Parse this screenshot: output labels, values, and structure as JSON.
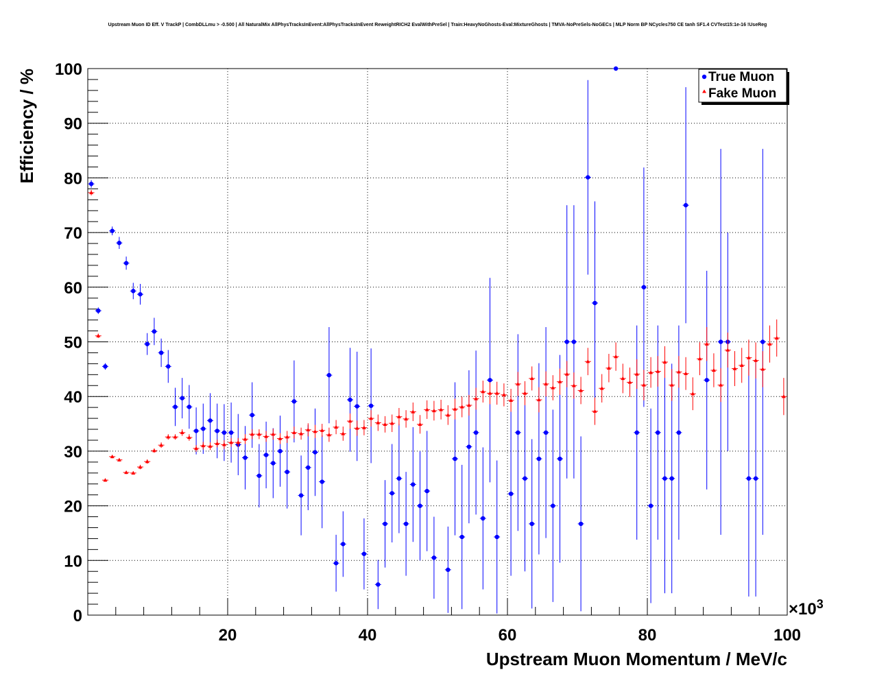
{
  "chart_data": {
    "type": "scatter",
    "title": "Upstream Muon ID Eff. V TrackP | CombDLLmu > -0.500 | All NaturalMix AllPhysTracksInEvent:AllPhysTracksInEvent ReweightRICH2 EvalWithPreSel | Train:HeavyNoGhosts-Eval:MixtureGhosts | TMVA-NoPreSels-NoGECs | MLP Norm BP NCycles750 CE tanh SF1.4 CVTest15:1e-16 !UseReg",
    "xlabel": "Upstream Muon Momentum / MeV/c",
    "ylabel": "Efficiency / %",
    "x_multiplier": "×10",
    "x_multiplier_exp": "3",
    "xlim": [
      0,
      100
    ],
    "ylim": [
      0,
      100
    ],
    "x_ticks": [
      20,
      40,
      60,
      80,
      100
    ],
    "y_ticks": [
      0,
      10,
      20,
      30,
      40,
      50,
      60,
      70,
      80,
      90,
      100
    ],
    "grid": true,
    "legend_position": "top-right",
    "series": [
      {
        "name": "True Muon",
        "color": "#0000ff",
        "marker": "circle",
        "points": [
          {
            "x": 0.5,
            "y": 78.9,
            "err": 0.7
          },
          {
            "x": 1.5,
            "y": 55.7,
            "err": 0.6
          },
          {
            "x": 2.5,
            "y": 45.5,
            "err": 0.6
          },
          {
            "x": 3.5,
            "y": 70.3,
            "err": 0.8
          },
          {
            "x": 4.5,
            "y": 68.1,
            "err": 1.1
          },
          {
            "x": 5.5,
            "y": 64.4,
            "err": 1.2
          },
          {
            "x": 6.5,
            "y": 59.3,
            "err": 1.5
          },
          {
            "x": 7.5,
            "y": 58.7,
            "err": 1.9
          },
          {
            "x": 8.5,
            "y": 49.6,
            "err": 2.0
          },
          {
            "x": 9.5,
            "y": 51.9,
            "err": 2.5
          },
          {
            "x": 10.5,
            "y": 48.0,
            "err": 2.6
          },
          {
            "x": 11.5,
            "y": 45.5,
            "err": 3.0
          },
          {
            "x": 12.5,
            "y": 38.1,
            "err": 3.5
          },
          {
            "x": 13.5,
            "y": 39.7,
            "err": 3.7
          },
          {
            "x": 14.5,
            "y": 38.1,
            "err": 4.0
          },
          {
            "x": 15.5,
            "y": 33.7,
            "err": 4.3
          },
          {
            "x": 16.5,
            "y": 34.1,
            "err": 4.6
          },
          {
            "x": 17.5,
            "y": 35.6,
            "err": 5.0
          },
          {
            "x": 18.5,
            "y": 33.7,
            "err": 5.0
          },
          {
            "x": 19.5,
            "y": 33.4,
            "err": 5.2
          },
          {
            "x": 20.5,
            "y": 33.4,
            "err": 5.5
          },
          {
            "x": 21.5,
            "y": 31.2,
            "err": 5.6
          },
          {
            "x": 22.5,
            "y": 28.8,
            "err": 5.8
          },
          {
            "x": 23.5,
            "y": 36.6,
            "err": 6.0
          },
          {
            "x": 24.5,
            "y": 25.5,
            "err": 5.8
          },
          {
            "x": 25.5,
            "y": 29.3,
            "err": 6.1
          },
          {
            "x": 26.5,
            "y": 27.8,
            "err": 6.4
          },
          {
            "x": 27.5,
            "y": 30.0,
            "err": 6.5
          },
          {
            "x": 28.5,
            "y": 26.2,
            "err": 6.7
          },
          {
            "x": 29.5,
            "y": 39.1,
            "err": 7.5
          },
          {
            "x": 30.5,
            "y": 21.9,
            "err": 7.3
          },
          {
            "x": 31.5,
            "y": 27.0,
            "err": 7.8
          },
          {
            "x": 32.5,
            "y": 29.8,
            "err": 8.0
          },
          {
            "x": 33.5,
            "y": 24.4,
            "err": 8.5
          },
          {
            "x": 34.5,
            "y": 43.9,
            "err": 8.8
          },
          {
            "x": 35.5,
            "y": 9.5,
            "err": 5.2
          },
          {
            "x": 36.5,
            "y": 13.0,
            "err": 6.0
          },
          {
            "x": 37.5,
            "y": 39.4,
            "err": 9.5
          },
          {
            "x": 38.5,
            "y": 38.2,
            "err": 10.0
          },
          {
            "x": 39.5,
            "y": 11.2,
            "err": 6.5
          },
          {
            "x": 40.5,
            "y": 38.3,
            "err": 10.5
          },
          {
            "x": 41.5,
            "y": 5.6,
            "err": 4.5
          },
          {
            "x": 42.5,
            "y": 16.7,
            "err": 8.0
          },
          {
            "x": 43.5,
            "y": 22.3,
            "err": 9.0
          },
          {
            "x": 44.5,
            "y": 25.0,
            "err": 10.0
          },
          {
            "x": 45.5,
            "y": 16.7,
            "err": 9.5
          },
          {
            "x": 46.5,
            "y": 23.9,
            "err": 10.5
          },
          {
            "x": 47.5,
            "y": 20.0,
            "err": 10.0
          },
          {
            "x": 48.5,
            "y": 22.7,
            "err": 11.0
          },
          {
            "x": 49.5,
            "y": 10.5,
            "err": 7.5
          },
          {
            "x": 51.5,
            "y": 8.3,
            "err": 7.9
          },
          {
            "x": 52.5,
            "y": 28.6,
            "err": 14.0
          },
          {
            "x": 53.5,
            "y": 14.3,
            "err": 13.2
          },
          {
            "x": 54.5,
            "y": 30.8,
            "err": 14.0
          },
          {
            "x": 55.5,
            "y": 33.4,
            "err": 15.0
          },
          {
            "x": 56.5,
            "y": 17.7,
            "err": 13.0
          },
          {
            "x": 57.5,
            "y": 43.0,
            "err": 18.7
          },
          {
            "x": 58.5,
            "y": 14.3,
            "err": 14.0
          },
          {
            "x": 60.5,
            "y": 22.2,
            "err": 15.0
          },
          {
            "x": 61.5,
            "y": 33.4,
            "err": 18.0
          },
          {
            "x": 62.5,
            "y": 25.0,
            "err": 17.0
          },
          {
            "x": 63.5,
            "y": 16.7,
            "err": 15.5
          },
          {
            "x": 64.5,
            "y": 28.6,
            "err": 17.5
          },
          {
            "x": 65.5,
            "y": 33.4,
            "err": 19.3
          },
          {
            "x": 66.5,
            "y": 20.0,
            "err": 17.6
          },
          {
            "x": 67.5,
            "y": 28.6,
            "err": 19.0
          },
          {
            "x": 68.5,
            "y": 50.0,
            "err": 25.0
          },
          {
            "x": 69.5,
            "y": 50.0,
            "err": 25.0
          },
          {
            "x": 70.5,
            "y": 16.7,
            "err": 16.0
          },
          {
            "x": 71.5,
            "y": 80.1,
            "err": 17.8
          },
          {
            "x": 72.5,
            "y": 57.1,
            "err": 18.6
          },
          {
            "x": 75.5,
            "y": 100.0,
            "err": 0
          },
          {
            "x": 78.5,
            "y": 33.4,
            "err": 19.6
          },
          {
            "x": 79.5,
            "y": 60.0,
            "err": 21.9
          },
          {
            "x": 80.5,
            "y": 20.0,
            "err": 17.8
          },
          {
            "x": 81.5,
            "y": 33.4,
            "err": 19.6
          },
          {
            "x": 82.5,
            "y": 25.0,
            "err": 21.0
          },
          {
            "x": 83.5,
            "y": 25.0,
            "err": 21.0
          },
          {
            "x": 84.5,
            "y": 33.4,
            "err": 19.6
          },
          {
            "x": 85.5,
            "y": 75.0,
            "err": 21.6
          },
          {
            "x": 88.5,
            "y": 43.0,
            "err": 20.0
          },
          {
            "x": 90.5,
            "y": 50.0,
            "err": 35.3
          },
          {
            "x": 91.5,
            "y": 50.0,
            "err": 20.0
          },
          {
            "x": 94.5,
            "y": 25.0,
            "err": 21.6
          },
          {
            "x": 95.5,
            "y": 25.0,
            "err": 21.6
          },
          {
            "x": 96.5,
            "y": 50.0,
            "err": 35.3
          }
        ]
      },
      {
        "name": "Fake Muon",
        "color": "#ff0000",
        "marker": "triangle",
        "points": [
          {
            "x": 0.5,
            "y": 77.3,
            "err": 0.5
          },
          {
            "x": 1.5,
            "y": 51.1,
            "err": 0.4
          },
          {
            "x": 2.5,
            "y": 24.7,
            "err": 0.3
          },
          {
            "x": 3.5,
            "y": 29.0,
            "err": 0.3
          },
          {
            "x": 4.5,
            "y": 28.4,
            "err": 0.3
          },
          {
            "x": 5.5,
            "y": 26.1,
            "err": 0.3
          },
          {
            "x": 6.5,
            "y": 26.0,
            "err": 0.3
          },
          {
            "x": 7.5,
            "y": 27.1,
            "err": 0.4
          },
          {
            "x": 8.5,
            "y": 28.1,
            "err": 0.4
          },
          {
            "x": 9.5,
            "y": 30.1,
            "err": 0.4
          },
          {
            "x": 10.5,
            "y": 31.1,
            "err": 0.5
          },
          {
            "x": 11.5,
            "y": 32.6,
            "err": 0.5
          },
          {
            "x": 12.5,
            "y": 32.6,
            "err": 0.5
          },
          {
            "x": 13.5,
            "y": 33.4,
            "err": 0.6
          },
          {
            "x": 14.5,
            "y": 32.5,
            "err": 0.6
          },
          {
            "x": 15.5,
            "y": 30.5,
            "err": 0.6
          },
          {
            "x": 16.5,
            "y": 31.0,
            "err": 0.7
          },
          {
            "x": 17.5,
            "y": 30.9,
            "err": 0.7
          },
          {
            "x": 18.5,
            "y": 31.4,
            "err": 0.7
          },
          {
            "x": 19.5,
            "y": 31.2,
            "err": 0.8
          },
          {
            "x": 20.5,
            "y": 31.6,
            "err": 0.8
          },
          {
            "x": 21.5,
            "y": 31.6,
            "err": 0.8
          },
          {
            "x": 22.5,
            "y": 32.2,
            "err": 0.9
          },
          {
            "x": 23.5,
            "y": 33.1,
            "err": 0.9
          },
          {
            "x": 24.5,
            "y": 33.1,
            "err": 0.9
          },
          {
            "x": 25.5,
            "y": 32.7,
            "err": 1.0
          },
          {
            "x": 26.5,
            "y": 33.1,
            "err": 1.0
          },
          {
            "x": 27.5,
            "y": 32.3,
            "err": 1.0
          },
          {
            "x": 28.5,
            "y": 32.6,
            "err": 1.1
          },
          {
            "x": 29.5,
            "y": 33.4,
            "err": 1.1
          },
          {
            "x": 30.5,
            "y": 33.2,
            "err": 1.1
          },
          {
            "x": 31.5,
            "y": 33.9,
            "err": 1.2
          },
          {
            "x": 32.5,
            "y": 33.6,
            "err": 1.2
          },
          {
            "x": 33.5,
            "y": 33.8,
            "err": 1.2
          },
          {
            "x": 34.5,
            "y": 33.0,
            "err": 1.3
          },
          {
            "x": 35.5,
            "y": 34.4,
            "err": 1.3
          },
          {
            "x": 36.5,
            "y": 33.2,
            "err": 1.3
          },
          {
            "x": 37.5,
            "y": 35.5,
            "err": 1.4
          },
          {
            "x": 38.5,
            "y": 34.2,
            "err": 1.4
          },
          {
            "x": 39.5,
            "y": 34.3,
            "err": 1.4
          },
          {
            "x": 40.5,
            "y": 36.0,
            "err": 1.5
          },
          {
            "x": 41.5,
            "y": 35.2,
            "err": 1.5
          },
          {
            "x": 42.5,
            "y": 34.9,
            "err": 1.5
          },
          {
            "x": 43.5,
            "y": 35.1,
            "err": 1.6
          },
          {
            "x": 44.5,
            "y": 36.3,
            "err": 1.6
          },
          {
            "x": 45.5,
            "y": 35.9,
            "err": 1.6
          },
          {
            "x": 46.5,
            "y": 37.2,
            "err": 1.7
          },
          {
            "x": 47.5,
            "y": 34.9,
            "err": 1.7
          },
          {
            "x": 48.5,
            "y": 37.6,
            "err": 1.7
          },
          {
            "x": 49.5,
            "y": 37.4,
            "err": 1.8
          },
          {
            "x": 50.5,
            "y": 37.6,
            "err": 1.8
          },
          {
            "x": 51.5,
            "y": 36.6,
            "err": 1.8
          },
          {
            "x": 52.5,
            "y": 37.7,
            "err": 1.9
          },
          {
            "x": 53.5,
            "y": 38.1,
            "err": 1.9
          },
          {
            "x": 54.5,
            "y": 38.4,
            "err": 1.9
          },
          {
            "x": 55.5,
            "y": 39.6,
            "err": 2.0
          },
          {
            "x": 56.5,
            "y": 40.9,
            "err": 2.0
          },
          {
            "x": 57.5,
            "y": 40.6,
            "err": 2.0
          },
          {
            "x": 58.5,
            "y": 40.6,
            "err": 2.1
          },
          {
            "x": 59.5,
            "y": 40.3,
            "err": 2.1
          },
          {
            "x": 60.5,
            "y": 39.3,
            "err": 2.1
          },
          {
            "x": 61.5,
            "y": 42.3,
            "err": 2.2
          },
          {
            "x": 62.5,
            "y": 40.6,
            "err": 2.2
          },
          {
            "x": 63.5,
            "y": 43.3,
            "err": 2.2
          },
          {
            "x": 64.5,
            "y": 39.4,
            "err": 2.3
          },
          {
            "x": 65.5,
            "y": 42.3,
            "err": 2.3
          },
          {
            "x": 66.5,
            "y": 41.6,
            "err": 2.3
          },
          {
            "x": 67.5,
            "y": 42.7,
            "err": 2.4
          },
          {
            "x": 68.5,
            "y": 44.1,
            "err": 2.4
          },
          {
            "x": 69.5,
            "y": 42.0,
            "err": 2.4
          },
          {
            "x": 70.5,
            "y": 41.1,
            "err": 2.5
          },
          {
            "x": 71.5,
            "y": 46.4,
            "err": 2.5
          },
          {
            "x": 72.5,
            "y": 37.3,
            "err": 2.5
          },
          {
            "x": 73.5,
            "y": 41.5,
            "err": 2.6
          },
          {
            "x": 74.5,
            "y": 45.2,
            "err": 2.6
          },
          {
            "x": 75.5,
            "y": 47.3,
            "err": 2.6
          },
          {
            "x": 76.5,
            "y": 43.3,
            "err": 2.7
          },
          {
            "x": 77.5,
            "y": 42.6,
            "err": 2.7
          },
          {
            "x": 78.5,
            "y": 44.1,
            "err": 2.7
          },
          {
            "x": 79.5,
            "y": 42.1,
            "err": 2.8
          },
          {
            "x": 80.5,
            "y": 44.4,
            "err": 2.8
          },
          {
            "x": 81.5,
            "y": 44.6,
            "err": 2.8
          },
          {
            "x": 82.5,
            "y": 46.3,
            "err": 2.9
          },
          {
            "x": 83.5,
            "y": 42.1,
            "err": 2.9
          },
          {
            "x": 84.5,
            "y": 44.5,
            "err": 2.9
          },
          {
            "x": 85.5,
            "y": 44.2,
            "err": 3.0
          },
          {
            "x": 86.5,
            "y": 40.5,
            "err": 3.0
          },
          {
            "x": 87.5,
            "y": 46.9,
            "err": 3.0
          },
          {
            "x": 88.5,
            "y": 49.6,
            "err": 3.1
          },
          {
            "x": 89.5,
            "y": 44.8,
            "err": 3.1
          },
          {
            "x": 90.5,
            "y": 42.1,
            "err": 3.1
          },
          {
            "x": 91.5,
            "y": 48.5,
            "err": 3.2
          },
          {
            "x": 92.5,
            "y": 45.1,
            "err": 3.2
          },
          {
            "x": 93.5,
            "y": 45.7,
            "err": 3.2
          },
          {
            "x": 94.5,
            "y": 47.1,
            "err": 3.3
          },
          {
            "x": 95.5,
            "y": 46.6,
            "err": 3.3
          },
          {
            "x": 96.5,
            "y": 45.0,
            "err": 3.3
          },
          {
            "x": 97.5,
            "y": 49.6,
            "err": 3.4
          },
          {
            "x": 98.5,
            "y": 50.7,
            "err": 3.4
          },
          {
            "x": 99.5,
            "y": 40.0,
            "err": 3.4
          }
        ]
      }
    ]
  }
}
